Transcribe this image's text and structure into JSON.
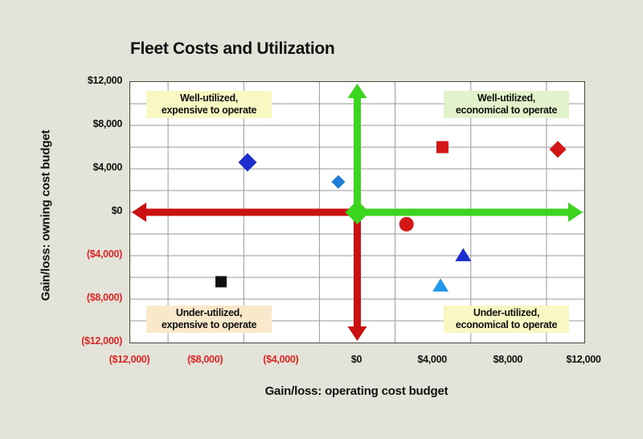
{
  "page": {
    "background": "#e4e3d9"
  },
  "chart_data": {
    "type": "scatter",
    "title": "Fleet Costs and Utilization",
    "xlabel": "Gain/loss: operating cost budget",
    "ylabel": "Gain/loss: owning cost budget",
    "xlim": [
      -12000,
      12000
    ],
    "ylim": [
      -12000,
      12000
    ],
    "grid": {
      "on": true,
      "color": "#9a9a9a",
      "vertical_line_values": [
        -10000,
        -6000,
        -2000,
        2000,
        6000,
        10000
      ],
      "horizontal_line_values": [
        -10000,
        -8000,
        -6000,
        -4000,
        -2000,
        0,
        2000,
        4000,
        6000,
        8000,
        10000
      ]
    },
    "x_ticks": [
      {
        "value": -12000,
        "label": "($12,000)",
        "color": "#da2626"
      },
      {
        "value": -8000,
        "label": "($8,000)",
        "color": "#da2626"
      },
      {
        "value": -4000,
        "label": "($4,000)",
        "color": "#da2626"
      },
      {
        "value": 0,
        "label": "$0",
        "color": "#111111"
      },
      {
        "value": 4000,
        "label": "$4,000",
        "color": "#111111"
      },
      {
        "value": 8000,
        "label": "$8,000",
        "color": "#111111"
      },
      {
        "value": 12000,
        "label": "$12,000",
        "color": "#111111"
      }
    ],
    "y_ticks": [
      {
        "value": 12000,
        "label": "$12,000",
        "color": "#111111"
      },
      {
        "value": 8000,
        "label": "$8,000",
        "color": "#111111"
      },
      {
        "value": 4000,
        "label": "$4,000",
        "color": "#111111"
      },
      {
        "value": 0,
        "label": "$0",
        "color": "#111111"
      },
      {
        "value": -4000,
        "label": "($4,000)",
        "color": "#da2626"
      },
      {
        "value": -8000,
        "label": "($8,000)",
        "color": "#da2626"
      },
      {
        "value": -12000,
        "label": "($12,000)",
        "color": "#da2626"
      }
    ],
    "axis_arrows": [
      {
        "direction": "up",
        "color": "#3bd41e"
      },
      {
        "direction": "right",
        "color": "#3bd41e"
      },
      {
        "direction": "left",
        "color": "#c91111"
      },
      {
        "direction": "down",
        "color": "#c91111"
      }
    ],
    "origin_marker": {
      "shape": "diamond",
      "color": "#3bd41e",
      "size": 30
    },
    "quadrant_labels": [
      {
        "position": "top-left",
        "line1": "Well-utilized,",
        "line2": "expensive to operate",
        "bg": "#f9f8c3"
      },
      {
        "position": "top-right",
        "line1": "Well-utilized,",
        "line2": "economical to operate",
        "bg": "#e2f3cb"
      },
      {
        "position": "bottom-left",
        "line1": "Under-utilized,",
        "line2": "expensive to operate",
        "bg": "#fae8ca"
      },
      {
        "position": "bottom-right",
        "line1": "Under-utilized,",
        "line2": "economical to operate",
        "bg": "#f9f8c3"
      }
    ],
    "points": [
      {
        "name": "blue-diamond-large",
        "marker": "diamond",
        "color": "#1c2ecd",
        "size": 23,
        "x": -5800,
        "y": 4600
      },
      {
        "name": "blue-diamond-small",
        "marker": "diamond",
        "color": "#1d7cd6",
        "size": 17,
        "x": -1000,
        "y": 2800
      },
      {
        "name": "red-square",
        "marker": "square",
        "color": "#d31717",
        "size": 15,
        "x": 4500,
        "y": 6000
      },
      {
        "name": "red-diamond",
        "marker": "diamond",
        "color": "#d31717",
        "size": 21,
        "x": 10600,
        "y": 5800
      },
      {
        "name": "red-circle",
        "marker": "circle",
        "color": "#d31717",
        "size": 18,
        "x": 2600,
        "y": -1100
      },
      {
        "name": "blue-triangle",
        "marker": "triangle",
        "color": "#1c2ecd",
        "size": 20,
        "x": 5600,
        "y": -3900
      },
      {
        "name": "light-blue-triangle",
        "marker": "triangle",
        "color": "#2196ea",
        "size": 20,
        "x": 4400,
        "y": -6700
      },
      {
        "name": "black-square",
        "marker": "square",
        "color": "#111111",
        "size": 14,
        "x": -7200,
        "y": -6400
      }
    ]
  }
}
